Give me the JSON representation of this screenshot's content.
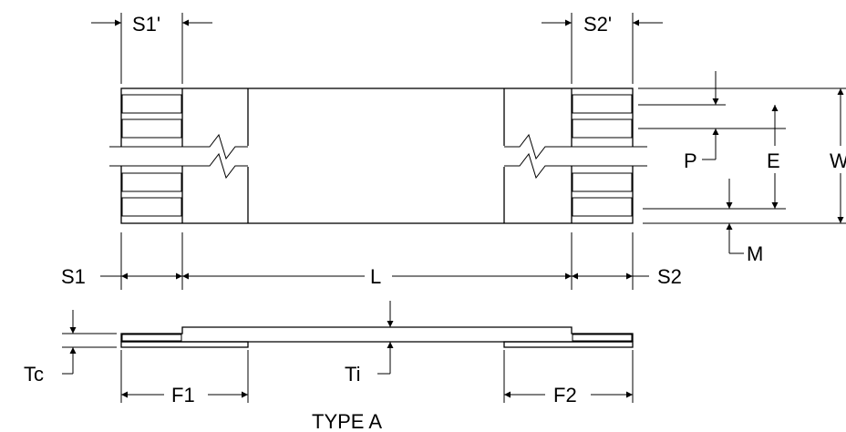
{
  "labels": {
    "s1_prime": "S1'",
    "s2_prime": "S2'",
    "p": "P",
    "e": "E",
    "w": "W",
    "m": "M",
    "s1": "S1",
    "l": "L",
    "s2": "S2",
    "tc": "Tc",
    "ti": "Ti",
    "f1": "F1",
    "f2": "F2",
    "caption": "TYPE A"
  }
}
